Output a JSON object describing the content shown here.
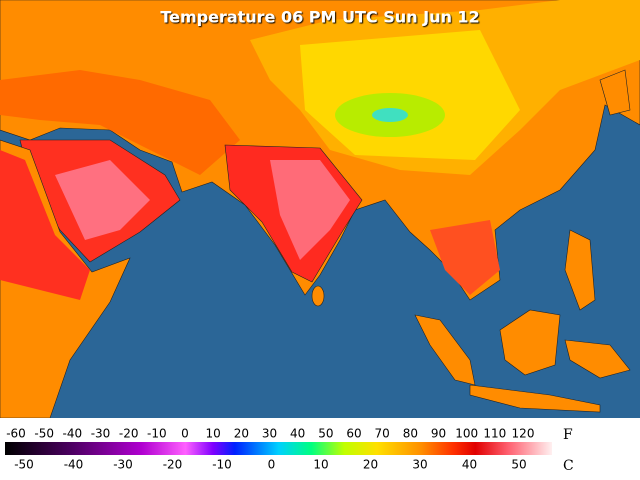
{
  "title": "Temperature 06 PM UTC Sun Jun 12",
  "legend": {
    "fahrenheit": {
      "unit": "F",
      "labels": [
        -60,
        -50,
        -40,
        -30,
        -20,
        -10,
        0,
        10,
        20,
        30,
        40,
        50,
        60,
        70,
        80,
        90,
        100,
        110,
        120
      ]
    },
    "celsius": {
      "unit": "C",
      "labels": [
        -50,
        -40,
        -30,
        -20,
        -10,
        0,
        10,
        20,
        30,
        40,
        50
      ]
    }
  }
}
